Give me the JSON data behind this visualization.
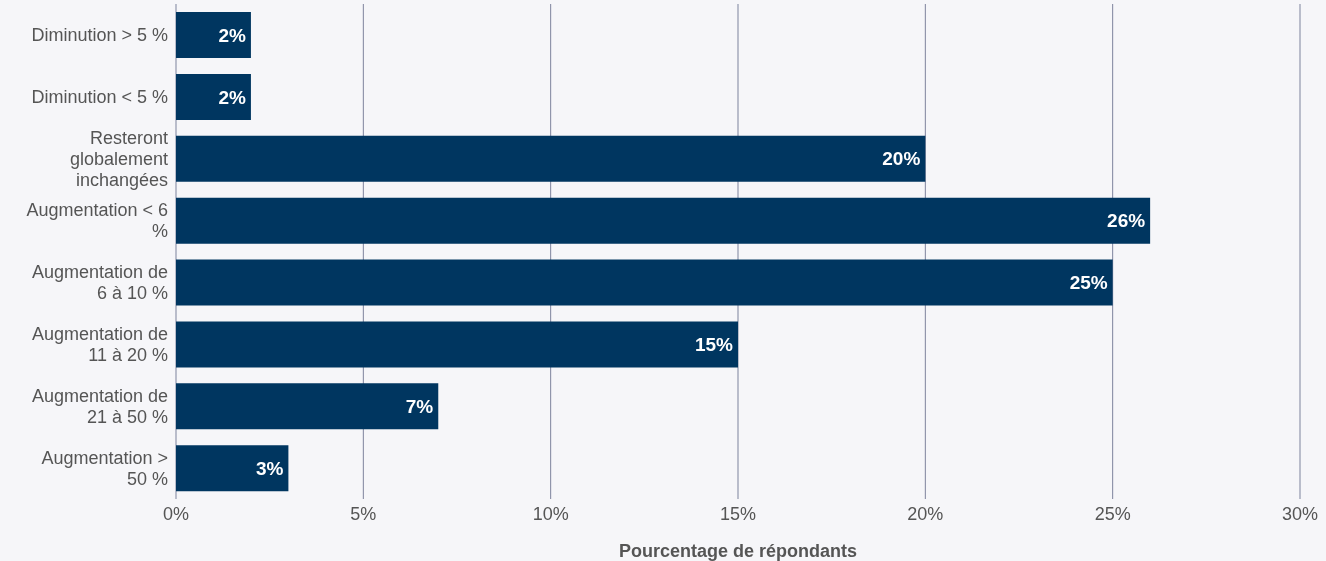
{
  "chart_data": {
    "type": "bar",
    "orientation": "horizontal",
    "xlabel": "Pourcentage de répondants",
    "categories": [
      "Diminution > 5 %",
      "Diminution < 5 %",
      "Resteront globalement inchangées",
      "Augmentation < 6 %",
      "Augmentation de 6 à 10 %",
      "Augmentation de 11 à 20 %",
      "Augmentation de 21 à 50 %",
      "Augmentation > 50 %"
    ],
    "values": [
      2,
      2,
      20,
      26,
      25,
      15,
      7,
      3
    ],
    "value_labels": [
      "2%",
      "2%",
      "20%",
      "26%",
      "25%",
      "15%",
      "7%",
      "3%"
    ],
    "color": "#003660",
    "xlim": [
      0,
      30
    ],
    "xticks": [
      {
        "value": 0,
        "label": "0%"
      },
      {
        "value": 5,
        "label": "5%"
      },
      {
        "value": 10,
        "label": "10%"
      },
      {
        "value": 15,
        "label": "15%"
      },
      {
        "value": 20,
        "label": "20%"
      },
      {
        "value": 25,
        "label": "25%"
      },
      {
        "value": 30,
        "label": "30%"
      }
    ],
    "grid": "x",
    "legend": false
  }
}
